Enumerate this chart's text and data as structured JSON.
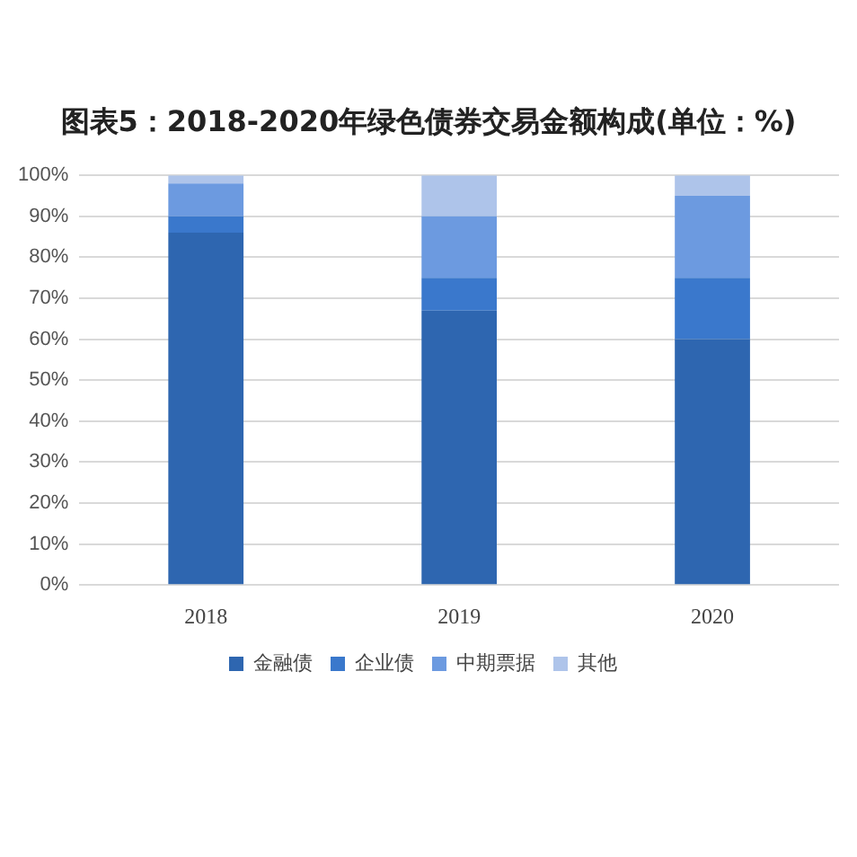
{
  "chart_data": {
    "type": "bar",
    "title": "图表5：2018-2020年绿色债券交易金额构成(单位：%)",
    "categories": [
      "2018",
      "2019",
      "2020"
    ],
    "stacked": true,
    "series": [
      {
        "name": "金融债",
        "color": "#2e66b0",
        "values": [
          86,
          67,
          60
        ]
      },
      {
        "name": "企业债",
        "color": "#3a78cc",
        "values": [
          4,
          8,
          15
        ]
      },
      {
        "name": "中期票据",
        "color": "#6c9ae0",
        "values": [
          8,
          15,
          20
        ]
      },
      {
        "name": "其他",
        "color": "#aec4ea",
        "values": [
          2,
          10,
          5
        ]
      }
    ],
    "ylim": [
      0,
      100
    ],
    "yticks": [
      {
        "value": 0,
        "label": "0%"
      },
      {
        "value": 10,
        "label": "10%"
      },
      {
        "value": 20,
        "label": "20%"
      },
      {
        "value": 30,
        "label": "30%"
      },
      {
        "value": 40,
        "label": "40%"
      },
      {
        "value": 50,
        "label": "50%"
      },
      {
        "value": 60,
        "label": "60%"
      },
      {
        "value": 70,
        "label": "70%"
      },
      {
        "value": 80,
        "label": "80%"
      },
      {
        "value": 90,
        "label": "90%"
      },
      {
        "value": 100,
        "label": "100%"
      }
    ],
    "grid": "y",
    "legend": "bottom"
  }
}
